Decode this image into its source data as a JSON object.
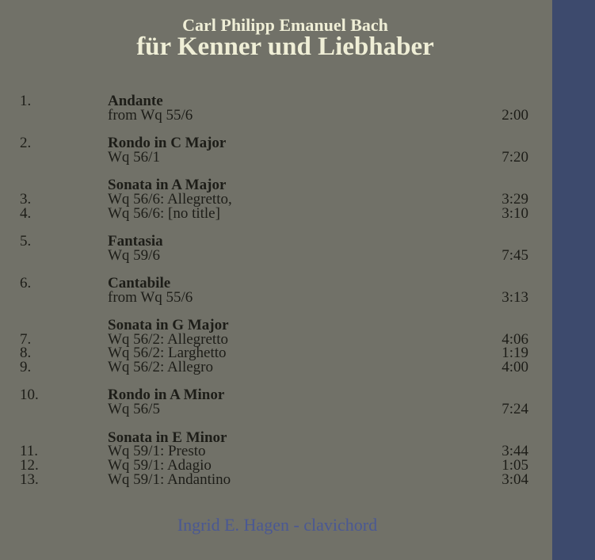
{
  "header": {
    "composer": "Carl Philipp Emanuel Bach",
    "album": "für Kenner und Liebhaber"
  },
  "groups": [
    {
      "title": "Andante",
      "tracks": [
        {
          "num": "1.",
          "name": "from Wq 55/6",
          "time": "2:00"
        }
      ]
    },
    {
      "title": "Rondo in C Major",
      "tracks": [
        {
          "num": "2.",
          "name": "Wq 56/1",
          "time": "7:20"
        }
      ]
    },
    {
      "title": "Sonata in A Major",
      "tracks": [
        {
          "num": "3.",
          "name": "Wq 56/6: Allegretto,",
          "time": "3:29"
        },
        {
          "num": "4.",
          "name": "Wq 56/6: [no title]",
          "time": "3:10"
        }
      ]
    },
    {
      "title": "Fantasia",
      "tracks": [
        {
          "num": "5.",
          "name": "Wq 59/6",
          "time": "7:45"
        }
      ]
    },
    {
      "title": "Cantabile",
      "tracks": [
        {
          "num": "6.",
          "name": "from Wq 55/6",
          "time": "3:13"
        }
      ]
    },
    {
      "title": "Sonata in G Major",
      "tracks": [
        {
          "num": "7.",
          "name": "Wq 56/2: Allegretto",
          "time": "4:06"
        },
        {
          "num": "8.",
          "name": "Wq 56/2: Larghetto",
          "time": "1:19"
        },
        {
          "num": "9.",
          "name": "Wq 56/2: Allegro",
          "time": "4:00"
        }
      ]
    },
    {
      "title": "Rondo in A Minor",
      "tracks": [
        {
          "num": "10.",
          "name": "Wq 56/5",
          "time": "7:24"
        }
      ]
    },
    {
      "title": "Sonata in E Minor",
      "tracks": [
        {
          "num": "11.",
          "name": "Wq 59/1: Presto",
          "time": "3:44"
        },
        {
          "num": "12.",
          "name": "Wq 59/1: Adagio",
          "time": "1:05"
        },
        {
          "num": "13.",
          "name": "Wq 59/1: Andantino",
          "time": "3:04"
        }
      ]
    }
  ],
  "footer": {
    "performer": "Ingrid E. Hagen - clavichord"
  },
  "colors": {
    "background": "#717168",
    "strip": "#3d4a6d",
    "title": "#efeed6",
    "text": "#1d1d18",
    "performer": "#4a5893"
  }
}
